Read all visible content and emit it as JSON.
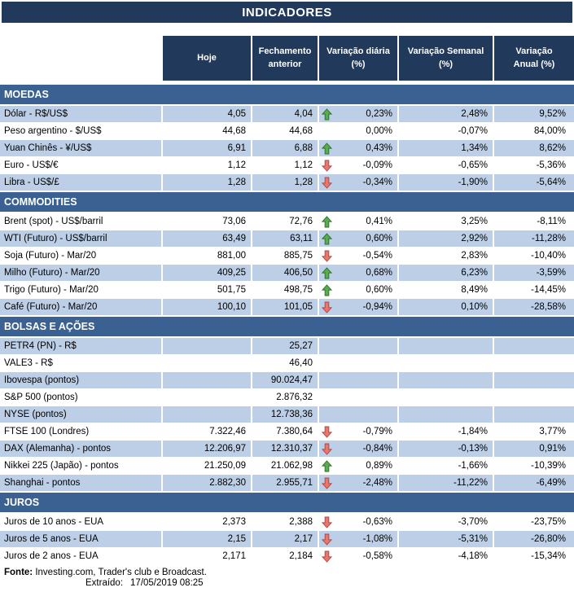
{
  "title": "INDICADORES",
  "columns": [
    "Hoje",
    "Fechamento\nanterior",
    "Variação diária\n(%)",
    "Variação Semanal\n(%)",
    "Variação\nAnual (%)"
  ],
  "colors": {
    "header_bg": "#21395b",
    "section_bg": "#3a6191",
    "stripe": "#bccfe7",
    "arrow_up_fill": "#57ac4f",
    "arrow_up_stroke": "#2f7023",
    "arrow_down_fill": "#e8766c",
    "arrow_down_stroke": "#b34540"
  },
  "sections": [
    {
      "name": "MOEDAS",
      "rows": [
        {
          "label": "Dólar - R$/US$",
          "hoje": "4,05",
          "fechamento": "4,04",
          "arrow": "up",
          "var_diaria": "0,23%",
          "var_semanal": "2,48%",
          "var_anual": "9,52%",
          "shaded": true
        },
        {
          "label": "Peso argentino - $/US$",
          "hoje": "44,68",
          "fechamento": "44,68",
          "arrow": null,
          "var_diaria": "0,00%",
          "var_semanal": "-0,07%",
          "var_anual": "84,00%",
          "shaded": false
        },
        {
          "label": "Yuan Chinês - ¥/US$",
          "hoje": "6,91",
          "fechamento": "6,88",
          "arrow": "up",
          "var_diaria": "0,43%",
          "var_semanal": "1,34%",
          "var_anual": "8,62%",
          "shaded": true
        },
        {
          "label": "Euro - US$/€",
          "hoje": "1,12",
          "fechamento": "1,12",
          "arrow": "down",
          "var_diaria": "-0,09%",
          "var_semanal": "-0,65%",
          "var_anual": "-5,36%",
          "shaded": false
        },
        {
          "label": "Libra - US$/£",
          "hoje": "1,28",
          "fechamento": "1,28",
          "arrow": "down",
          "var_diaria": "-0,34%",
          "var_semanal": "-1,90%",
          "var_anual": "-5,64%",
          "shaded": true
        }
      ]
    },
    {
      "name": "COMMODITIES",
      "rows": [
        {
          "label": "Brent (spot) - US$/barril",
          "hoje": "73,06",
          "fechamento": "72,76",
          "arrow": "up",
          "var_diaria": "0,41%",
          "var_semanal": "3,25%",
          "var_anual": "-8,11%",
          "shaded": false
        },
        {
          "label": "WTI (Futuro) - US$/barril",
          "hoje": "63,49",
          "fechamento": "63,11",
          "arrow": "up",
          "var_diaria": "0,60%",
          "var_semanal": "2,92%",
          "var_anual": "-11,28%",
          "shaded": true
        },
        {
          "label": "Soja (Futuro) - Mar/20",
          "hoje": "881,00",
          "fechamento": "885,75",
          "arrow": "down",
          "var_diaria": "-0,54%",
          "var_semanal": "2,83%",
          "var_anual": "-10,40%",
          "shaded": false
        },
        {
          "label": "Milho (Futuro) - Mar/20",
          "hoje": "409,25",
          "fechamento": "406,50",
          "arrow": "up",
          "var_diaria": "0,68%",
          "var_semanal": "6,23%",
          "var_anual": "-3,59%",
          "shaded": true
        },
        {
          "label": "Trigo (Futuro) - Mar/20",
          "hoje": "501,75",
          "fechamento": "498,75",
          "arrow": "up",
          "var_diaria": "0,60%",
          "var_semanal": "8,49%",
          "var_anual": "-14,45%",
          "shaded": false
        },
        {
          "label": "Café (Futuro) - Mar/20",
          "hoje": "100,10",
          "fechamento": "101,05",
          "arrow": "down",
          "var_diaria": "-0,94%",
          "var_semanal": "0,10%",
          "var_anual": "-28,58%",
          "shaded": true
        }
      ]
    },
    {
      "name": "BOLSAS E AÇÕES",
      "rows": [
        {
          "label": "PETR4 (PN) - R$",
          "hoje": "",
          "fechamento": "25,27",
          "arrow": null,
          "var_diaria": "",
          "var_semanal": "",
          "var_anual": "",
          "shaded": true
        },
        {
          "label": "VALE3 - R$",
          "hoje": "",
          "fechamento": "46,40",
          "arrow": null,
          "var_diaria": "",
          "var_semanal": "",
          "var_anual": "",
          "shaded": false
        },
        {
          "label": "Ibovespa (pontos)",
          "hoje": "",
          "fechamento": "90.024,47",
          "arrow": null,
          "var_diaria": "",
          "var_semanal": "",
          "var_anual": "",
          "shaded": true
        },
        {
          "label": "S&P 500 (pontos)",
          "hoje": "",
          "fechamento": "2.876,32",
          "arrow": null,
          "var_diaria": "",
          "var_semanal": "",
          "var_anual": "",
          "shaded": false
        },
        {
          "label": "NYSE (pontos)",
          "hoje": "",
          "fechamento": "12.738,36",
          "arrow": null,
          "var_diaria": "",
          "var_semanal": "",
          "var_anual": "",
          "shaded": true
        },
        {
          "label": "FTSE 100 (Londres)",
          "hoje": "7.322,46",
          "fechamento": "7.380,64",
          "arrow": "down",
          "var_diaria": "-0,79%",
          "var_semanal": "-1,84%",
          "var_anual": "3,77%",
          "shaded": false
        },
        {
          "label": "DAX (Alemanha) - pontos",
          "hoje": "12.206,97",
          "fechamento": "12.310,37",
          "arrow": "down",
          "var_diaria": "-0,84%",
          "var_semanal": "-0,13%",
          "var_anual": "0,91%",
          "shaded": true
        },
        {
          "label": "Nikkei 225 (Japão) - pontos",
          "hoje": "21.250,09",
          "fechamento": "21.062,98",
          "arrow": "up",
          "var_diaria": "0,89%",
          "var_semanal": "-1,66%",
          "var_anual": "-10,39%",
          "shaded": false
        },
        {
          "label": "Shanghai - pontos",
          "hoje": "2.882,30",
          "fechamento": "2.955,71",
          "arrow": "down",
          "var_diaria": "-2,48%",
          "var_semanal": "-11,22%",
          "var_anual": "-6,49%",
          "shaded": true
        }
      ]
    },
    {
      "name": "JUROS",
      "rows": [
        {
          "label": "Juros de 10 anos - EUA",
          "hoje": "2,373",
          "fechamento": "2,388",
          "arrow": "down",
          "var_diaria": "-0,63%",
          "var_semanal": "-3,70%",
          "var_anual": "-23,75%",
          "shaded": false
        },
        {
          "label": "Juros de 5 anos - EUA",
          "hoje": "2,15",
          "fechamento": "2,17",
          "arrow": "down",
          "var_diaria": "-1,08%",
          "var_semanal": "-5,31%",
          "var_anual": "-26,80%",
          "shaded": true
        },
        {
          "label": "Juros de 2 anos - EUA",
          "hoje": "2,171",
          "fechamento": "2,184",
          "arrow": "down",
          "var_diaria": "-0,58%",
          "var_semanal": "-4,18%",
          "var_anual": "-15,34%",
          "shaded": false
        }
      ]
    }
  ],
  "footer": {
    "fonte_label": "Fonte:",
    "fonte_text": " Investing.com, Trader's club e Broadcast.",
    "extraido_label": "Extraído:",
    "extraido_value": "17/05/2019 08:25"
  }
}
